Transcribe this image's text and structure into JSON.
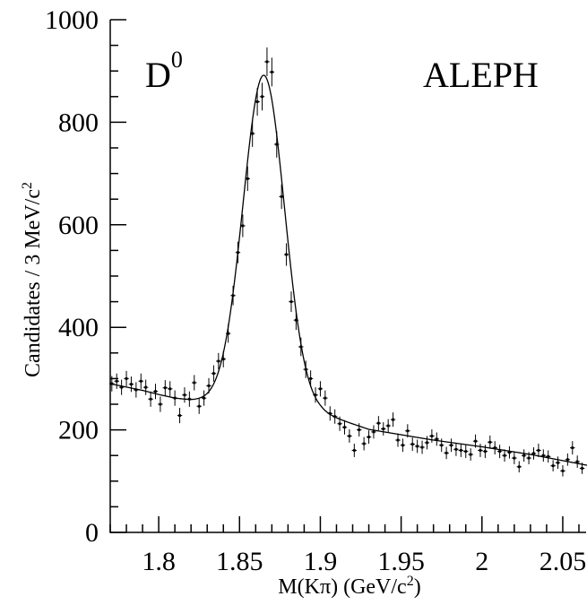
{
  "chart_data": {
    "type": "scatter",
    "xlabel": "M(Kπ) (GeV/c²)",
    "ylabel": "Candidates / 3 MeV/c²",
    "xlim": [
      1.77,
      2.065
    ],
    "ylim": [
      0,
      1000
    ],
    "x_ticks": [
      1.8,
      1.85,
      1.9,
      1.95,
      2.0,
      2.05
    ],
    "x_tick_labels": [
      "1.8",
      "1.85",
      "1.9",
      "1.95",
      "2",
      "2.05"
    ],
    "y_ticks": [
      0,
      200,
      400,
      600,
      800,
      1000
    ],
    "y_tick_labels": [
      "0",
      "200",
      "400",
      "600",
      "800",
      "1000"
    ],
    "grid": false,
    "annotations": {
      "particle": "D",
      "particle_sup": "0",
      "experiment": "ALEPH"
    },
    "fit_curve": {
      "peak_mass": 1.865,
      "peak_height": 640,
      "width": 0.0128,
      "background": [
        [
          1.77,
          290
        ],
        [
          1.79,
          277
        ],
        [
          1.8,
          269
        ],
        [
          1.81,
          262
        ],
        [
          1.82,
          258
        ],
        [
          1.83,
          256
        ],
        [
          1.85,
          254
        ],
        [
          1.87,
          251
        ],
        [
          1.9,
          233
        ],
        [
          1.93,
          201
        ],
        [
          1.97,
          180
        ],
        [
          2.0,
          167
        ],
        [
          2.03,
          152
        ],
        [
          2.065,
          131
        ]
      ]
    },
    "series": [
      {
        "points": [
          [
            1.771,
            290,
            15
          ],
          [
            1.774,
            295,
            15
          ],
          [
            1.777,
            283,
            15
          ],
          [
            1.78,
            300,
            15
          ],
          [
            1.783,
            289,
            15
          ],
          [
            1.786,
            278,
            15
          ],
          [
            1.789,
            295,
            15
          ],
          [
            1.792,
            283,
            15
          ],
          [
            1.795,
            260,
            15
          ],
          [
            1.798,
            275,
            15
          ],
          [
            1.801,
            250,
            15
          ],
          [
            1.804,
            282,
            15
          ],
          [
            1.807,
            280,
            15
          ],
          [
            1.81,
            262,
            15
          ],
          [
            1.813,
            228,
            15
          ],
          [
            1.816,
            268,
            15
          ],
          [
            1.819,
            260,
            15
          ],
          [
            1.822,
            292,
            15
          ],
          [
            1.825,
            246,
            15
          ],
          [
            1.828,
            262,
            15
          ],
          [
            1.831,
            286,
            15
          ],
          [
            1.834,
            310,
            16
          ],
          [
            1.837,
            334,
            16
          ],
          [
            1.84,
            338,
            16
          ],
          [
            1.843,
            388,
            18
          ],
          [
            1.846,
            462,
            19
          ],
          [
            1.849,
            546,
            21
          ],
          [
            1.852,
            598,
            22
          ],
          [
            1.855,
            690,
            24
          ],
          [
            1.858,
            778,
            26
          ],
          [
            1.861,
            840,
            27
          ],
          [
            1.864,
            850,
            27
          ],
          [
            1.867,
            918,
            28
          ],
          [
            1.87,
            898,
            28
          ],
          [
            1.873,
            757,
            26
          ],
          [
            1.876,
            655,
            24
          ],
          [
            1.879,
            542,
            22
          ],
          [
            1.882,
            450,
            20
          ],
          [
            1.885,
            414,
            19
          ],
          [
            1.888,
            362,
            18
          ],
          [
            1.891,
            318,
            17
          ],
          [
            1.894,
            300,
            16
          ],
          [
            1.897,
            268,
            15
          ],
          [
            1.9,
            280,
            15
          ],
          [
            1.903,
            262,
            15
          ],
          [
            1.906,
            232,
            14
          ],
          [
            1.909,
            226,
            14
          ],
          [
            1.912,
            212,
            14
          ],
          [
            1.915,
            205,
            14
          ],
          [
            1.918,
            188,
            13
          ],
          [
            1.921,
            160,
            13
          ],
          [
            1.924,
            200,
            13
          ],
          [
            1.927,
            173,
            13
          ],
          [
            1.93,
            186,
            13
          ],
          [
            1.933,
            196,
            13
          ],
          [
            1.936,
            213,
            14
          ],
          [
            1.939,
            202,
            13
          ],
          [
            1.942,
            208,
            13
          ],
          [
            1.945,
            220,
            14
          ],
          [
            1.948,
            180,
            13
          ],
          [
            1.951,
            170,
            13
          ],
          [
            1.954,
            198,
            13
          ],
          [
            1.957,
            172,
            13
          ],
          [
            1.96,
            168,
            13
          ],
          [
            1.963,
            166,
            13
          ],
          [
            1.966,
            175,
            13
          ],
          [
            1.969,
            188,
            13
          ],
          [
            1.972,
            182,
            13
          ],
          [
            1.975,
            170,
            13
          ],
          [
            1.978,
            155,
            12
          ],
          [
            1.981,
            170,
            13
          ],
          [
            1.984,
            162,
            13
          ],
          [
            1.987,
            160,
            13
          ],
          [
            1.99,
            158,
            13
          ],
          [
            1.993,
            152,
            12
          ],
          [
            1.996,
            178,
            13
          ],
          [
            1.999,
            160,
            13
          ],
          [
            2.002,
            158,
            13
          ],
          [
            2.005,
            176,
            13
          ],
          [
            2.008,
            165,
            13
          ],
          [
            2.011,
            158,
            13
          ],
          [
            2.014,
            150,
            12
          ],
          [
            2.017,
            156,
            12
          ],
          [
            2.02,
            145,
            12
          ],
          [
            2.023,
            128,
            11
          ],
          [
            2.026,
            150,
            12
          ],
          [
            2.029,
            145,
            12
          ],
          [
            2.032,
            154,
            12
          ],
          [
            2.035,
            160,
            13
          ],
          [
            2.038,
            150,
            12
          ],
          [
            2.041,
            148,
            12
          ],
          [
            2.044,
            130,
            11
          ],
          [
            2.047,
            136,
            12
          ],
          [
            2.05,
            120,
            11
          ],
          [
            2.053,
            142,
            12
          ],
          [
            2.056,
            165,
            13
          ],
          [
            2.059,
            138,
            12
          ],
          [
            2.062,
            125,
            11
          ]
        ]
      }
    ]
  }
}
